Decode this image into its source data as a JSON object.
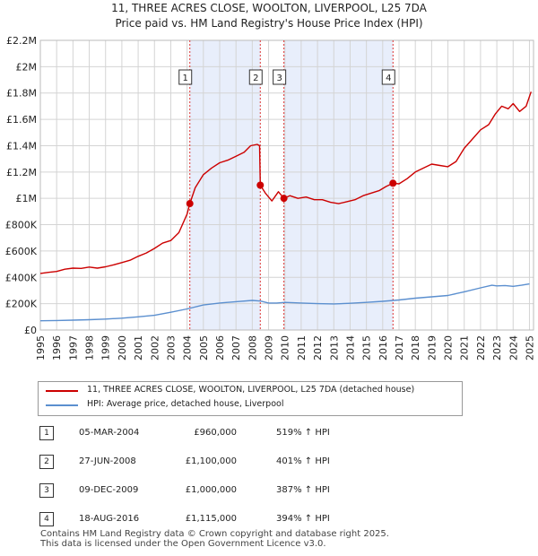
{
  "chart_data": {
    "type": "line",
    "title": "11, THREE ACRES CLOSE, WOOLTON, LIVERPOOL, L25 7DA",
    "subtitle": "Price paid vs. HM Land Registry's House Price Index (HPI)",
    "x_range": [
      1995,
      2025.25
    ],
    "ylim": [
      0,
      2200000
    ],
    "y_ticks": [
      0,
      200000,
      400000,
      600000,
      800000,
      1000000,
      1200000,
      1400000,
      1600000,
      1800000,
      2000000,
      2200000
    ],
    "y_tick_labels": [
      "£0",
      "£200K",
      "£400K",
      "£600K",
      "£800K",
      "£1M",
      "£1.2M",
      "£1.4M",
      "£1.6M",
      "£1.8M",
      "£2M",
      "£2.2M"
    ],
    "x_ticks": [
      1995,
      1996,
      1997,
      1998,
      1999,
      2000,
      2001,
      2002,
      2003,
      2004,
      2005,
      2006,
      2007,
      2008,
      2009,
      2010,
      2011,
      2012,
      2013,
      2014,
      2015,
      2016,
      2017,
      2018,
      2019,
      2020,
      2021,
      2022,
      2023,
      2024,
      2025
    ],
    "x_tick_labels": [
      "1995",
      "1996",
      "1997",
      "1998",
      "1999",
      "2000",
      "2001",
      "2002",
      "2003",
      "2004",
      "2005",
      "2006",
      "2007",
      "2008",
      "2009",
      "2010",
      "2011",
      "2012",
      "2013",
      "2014",
      "2015",
      "2016",
      "2017",
      "2018",
      "2019",
      "2020",
      "2021",
      "2022",
      "2023",
      "2024",
      "2025"
    ],
    "grid": true,
    "series": [
      {
        "name": "11, THREE ACRES CLOSE, WOOLTON, LIVERPOOL, L25 7DA (detached house)",
        "color": "#cc0000",
        "x": [
          1995.0,
          1995.5,
          1996.0,
          1996.5,
          1997.0,
          1997.5,
          1998.0,
          1998.5,
          1999.0,
          1999.5,
          2000.0,
          2000.5,
          2001.0,
          2001.5,
          2002.0,
          2002.5,
          2003.0,
          2003.5,
          2004.0,
          2004.17,
          2004.5,
          2005.0,
          2005.5,
          2006.0,
          2006.5,
          2007.0,
          2007.5,
          2007.9,
          2008.3,
          2008.45,
          2008.49,
          2008.8,
          2009.2,
          2009.6,
          2009.94,
          2010.3,
          2010.8,
          2011.3,
          2011.8,
          2012.3,
          2012.8,
          2013.3,
          2013.8,
          2014.3,
          2014.8,
          2015.3,
          2015.8,
          2016.2,
          2016.63,
          2017.0,
          2017.5,
          2018.0,
          2018.5,
          2019.0,
          2019.5,
          2020.0,
          2020.5,
          2021.0,
          2021.5,
          2022.0,
          2022.5,
          2022.9,
          2023.3,
          2023.7,
          2024.0,
          2024.4,
          2024.8,
          2025.1
        ],
        "values": [
          430000,
          438000,
          445000,
          462000,
          470000,
          468000,
          478000,
          470000,
          480000,
          495000,
          512000,
          530000,
          560000,
          585000,
          620000,
          660000,
          680000,
          740000,
          880000,
          960000,
          1080000,
          1180000,
          1230000,
          1270000,
          1290000,
          1320000,
          1350000,
          1400000,
          1410000,
          1400000,
          1100000,
          1040000,
          980000,
          1050000,
          1000000,
          1020000,
          1000000,
          1010000,
          990000,
          990000,
          970000,
          960000,
          975000,
          990000,
          1020000,
          1040000,
          1060000,
          1090000,
          1115000,
          1110000,
          1150000,
          1200000,
          1230000,
          1260000,
          1250000,
          1240000,
          1280000,
          1380000,
          1450000,
          1520000,
          1560000,
          1640000,
          1700000,
          1680000,
          1720000,
          1660000,
          1700000,
          1810000
        ]
      },
      {
        "name": "HPI: Average price, detached house, Liverpool",
        "color": "#5b8fcf",
        "x": [
          1995.0,
          1996.0,
          1997.0,
          1998.0,
          1999.0,
          2000.0,
          2001.0,
          2002.0,
          2003.0,
          2004.0,
          2005.0,
          2006.0,
          2007.0,
          2008.0,
          2008.5,
          2009.0,
          2009.5,
          2010.0,
          2011.0,
          2012.0,
          2013.0,
          2014.0,
          2015.0,
          2016.0,
          2017.0,
          2018.0,
          2019.0,
          2020.0,
          2021.0,
          2022.0,
          2022.7,
          2023.0,
          2023.5,
          2024.0,
          2024.5,
          2025.0
        ],
        "values": [
          70000,
          72000,
          75000,
          78000,
          83000,
          90000,
          100000,
          112000,
          135000,
          160000,
          190000,
          205000,
          215000,
          225000,
          220000,
          205000,
          205000,
          210000,
          205000,
          200000,
          198000,
          203000,
          210000,
          218000,
          228000,
          242000,
          252000,
          262000,
          290000,
          320000,
          340000,
          335000,
          338000,
          332000,
          340000,
          350000
        ]
      }
    ],
    "sale_markers": [
      {
        "id": "1",
        "x": 2004.17,
        "value": 960000
      },
      {
        "id": "2",
        "x": 2008.49,
        "value": 1100000
      },
      {
        "id": "3",
        "x": 2009.94,
        "value": 1000000
      },
      {
        "id": "4",
        "x": 2016.63,
        "value": 1115000
      }
    ],
    "shaded_spans": [
      [
        2004.17,
        2008.49
      ],
      [
        2009.94,
        2016.63
      ]
    ],
    "sale_lines": [
      2004.17,
      2008.49,
      2009.94,
      2016.63
    ],
    "legend_placement": "below"
  },
  "legend": {
    "entries": [
      {
        "label": "11, THREE ACRES CLOSE, WOOLTON, LIVERPOOL, L25 7DA (detached house)",
        "color": "#cc0000"
      },
      {
        "label": "HPI: Average price, detached house, Liverpool",
        "color": "#5b8fcf"
      }
    ]
  },
  "sales": [
    {
      "num": "1",
      "date": "05-MAR-2004",
      "price": "£960,000",
      "pct": "519% ↑ HPI"
    },
    {
      "num": "2",
      "date": "27-JUN-2008",
      "price": "£1,100,000",
      "pct": "401% ↑ HPI"
    },
    {
      "num": "3",
      "date": "09-DEC-2009",
      "price": "£1,000,000",
      "pct": "387% ↑ HPI"
    },
    {
      "num": "4",
      "date": "18-AUG-2016",
      "price": "£1,115,000",
      "pct": "394% ↑ HPI"
    }
  ],
  "footer": {
    "line1": "Contains HM Land Registry data © Crown copyright and database right 2025.",
    "line2": "This data is licensed under the Open Government Licence v3.0."
  }
}
